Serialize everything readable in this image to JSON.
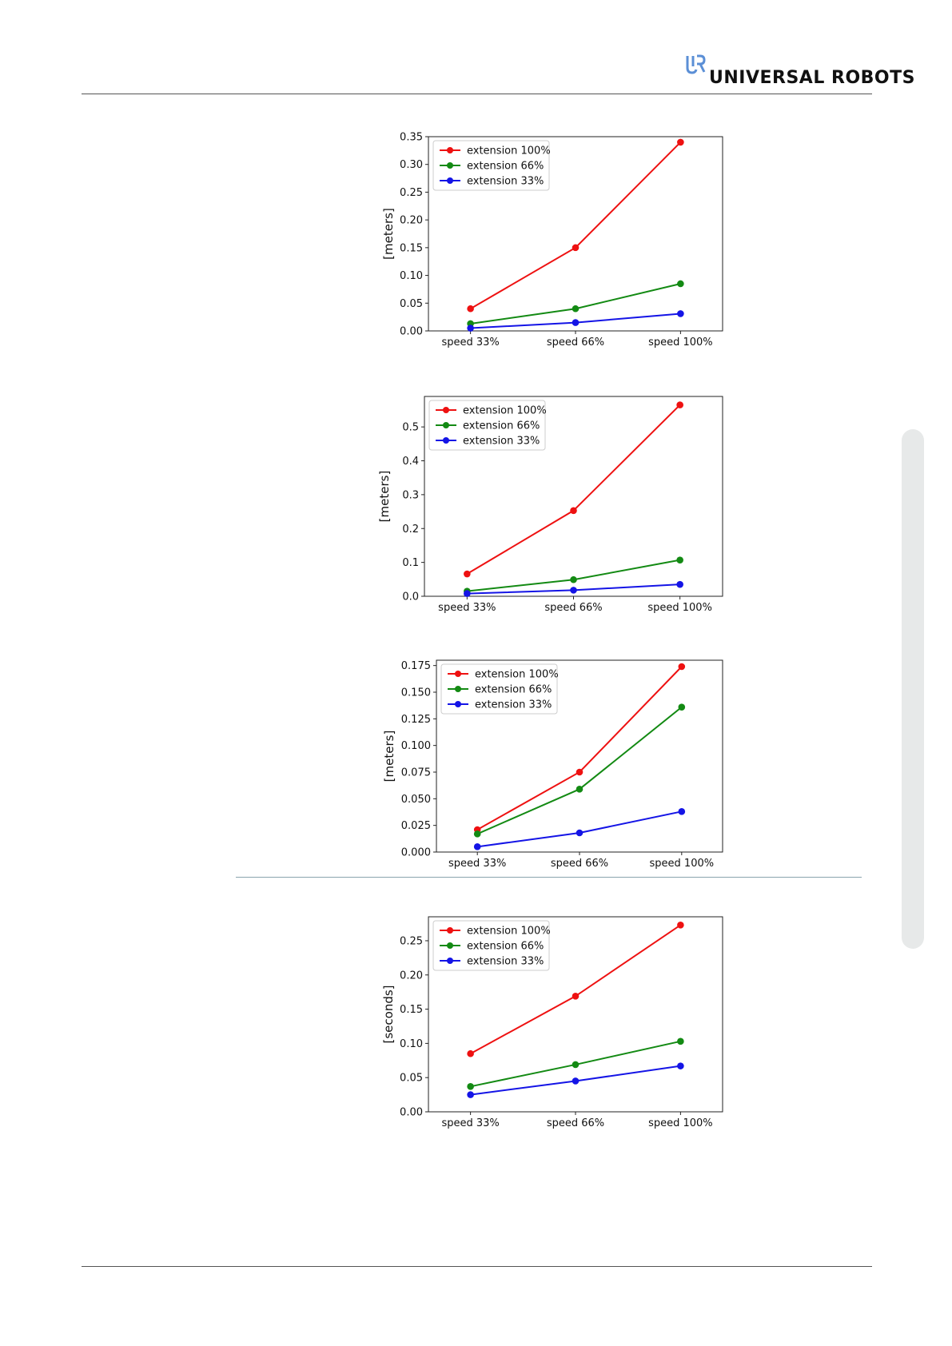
{
  "header": {
    "brand": "UNIVERSAL ROBOTS"
  },
  "colors": {
    "red": "#ee1111",
    "green": "#138a13",
    "blue": "#1414e6"
  },
  "chart_data": [
    {
      "type": "line",
      "categories": [
        "speed 33%",
        "speed 66%",
        "speed 100%"
      ],
      "ylabel": "[meters]",
      "ylim": [
        0,
        0.35
      ],
      "yticks": [
        "0.00",
        "0.05",
        "0.10",
        "0.15",
        "0.20",
        "0.25",
        "0.30",
        "0.35"
      ],
      "legend_position": "top-left",
      "series": [
        {
          "name": "extension 100%",
          "color": "#ee1111",
          "values": [
            0.04,
            0.15,
            0.34
          ]
        },
        {
          "name": "extension 66%",
          "color": "#138a13",
          "values": [
            0.013,
            0.04,
            0.085
          ]
        },
        {
          "name": "extension 33%",
          "color": "#1414e6",
          "values": [
            0.005,
            0.015,
            0.031
          ]
        }
      ]
    },
    {
      "type": "line",
      "categories": [
        "speed 33%",
        "speed 66%",
        "speed 100%"
      ],
      "ylabel": "[meters]",
      "ylim": [
        0,
        0.59
      ],
      "yticks": [
        "0.0",
        "0.1",
        "0.2",
        "0.3",
        "0.4",
        "0.5"
      ],
      "legend_position": "top-left",
      "series": [
        {
          "name": "extension 100%",
          "color": "#ee1111",
          "values": [
            0.066,
            0.253,
            0.565
          ]
        },
        {
          "name": "extension 66%",
          "color": "#138a13",
          "values": [
            0.015,
            0.049,
            0.107
          ]
        },
        {
          "name": "extension 33%",
          "color": "#1414e6",
          "values": [
            0.008,
            0.018,
            0.035
          ]
        }
      ]
    },
    {
      "type": "line",
      "categories": [
        "speed 33%",
        "speed 66%",
        "speed 100%"
      ],
      "ylabel": "[meters]",
      "ylim": [
        0,
        0.18
      ],
      "yticks": [
        "0.000",
        "0.025",
        "0.050",
        "0.075",
        "0.100",
        "0.125",
        "0.150",
        "0.175"
      ],
      "legend_position": "top-left",
      "series": [
        {
          "name": "extension 100%",
          "color": "#ee1111",
          "values": [
            0.021,
            0.075,
            0.174
          ]
        },
        {
          "name": "extension 66%",
          "color": "#138a13",
          "values": [
            0.017,
            0.059,
            0.136
          ]
        },
        {
          "name": "extension 33%",
          "color": "#1414e6",
          "values": [
            0.005,
            0.018,
            0.038
          ]
        }
      ]
    },
    {
      "type": "line",
      "categories": [
        "speed 33%",
        "speed 66%",
        "speed 100%"
      ],
      "ylabel": "[seconds]",
      "ylim": [
        0,
        0.285
      ],
      "yticks": [
        "0.00",
        "0.05",
        "0.10",
        "0.15",
        "0.20",
        "0.25"
      ],
      "legend_position": "top-left",
      "series": [
        {
          "name": "extension 100%",
          "color": "#ee1111",
          "values": [
            0.085,
            0.169,
            0.273
          ]
        },
        {
          "name": "extension 66%",
          "color": "#138a13",
          "values": [
            0.037,
            0.069,
            0.103
          ]
        },
        {
          "name": "extension 33%",
          "color": "#1414e6",
          "values": [
            0.025,
            0.045,
            0.067
          ]
        }
      ]
    }
  ]
}
